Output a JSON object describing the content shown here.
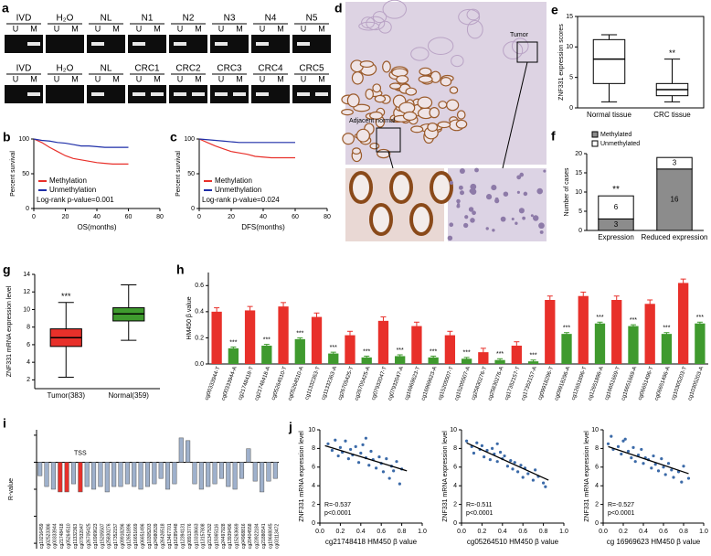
{
  "gel": {
    "panel": "a",
    "lanes": [
      "U",
      "M"
    ],
    "rows": [
      {
        "groups": [
          "IVD",
          "H₂O",
          "NL",
          "N1",
          "N2",
          "N3",
          "N4",
          "N5"
        ]
      },
      {
        "groups": [
          "IVD",
          "H₂O",
          "NL",
          "CRC1",
          "CRC2",
          "CRC3",
          "CRC4",
          "CRC5"
        ]
      }
    ]
  },
  "histology": {
    "panel": "d",
    "labels": [
      "Tumor",
      "Adjacent normal"
    ]
  },
  "chart_data": [
    {
      "type": "survival",
      "panel": "b",
      "y_label": "Percent survival",
      "x_label": "OS(months)",
      "x": [
        0,
        5,
        10,
        15,
        20,
        25,
        30,
        35,
        40,
        45,
        50,
        55,
        60
      ],
      "series": [
        {
          "name": "Methylation",
          "color": "#e8302a",
          "values": [
            100,
            95,
            88,
            82,
            76,
            72,
            70,
            68,
            66,
            65,
            64,
            64,
            64
          ]
        },
        {
          "name": "Unmethylation",
          "color": "#1f2fa8",
          "values": [
            100,
            98,
            97,
            95,
            94,
            92,
            90,
            90,
            89,
            88,
            88,
            88,
            88
          ]
        }
      ],
      "annotation": "Log-rank p-value=0.001",
      "xlim": [
        0,
        80
      ],
      "xticks": [
        0,
        20,
        40,
        60,
        80
      ],
      "ylim": [
        0,
        100
      ],
      "yticks": [
        0,
        50,
        100
      ]
    },
    {
      "type": "survival",
      "panel": "c",
      "y_label": "Percent survival",
      "x_label": "DFS(months)",
      "x": [
        0,
        5,
        10,
        15,
        20,
        25,
        30,
        35,
        40,
        45,
        50,
        55,
        60
      ],
      "series": [
        {
          "name": "Methylation",
          "color": "#e8302a",
          "values": [
            100,
            95,
            90,
            86,
            82,
            80,
            78,
            75,
            74,
            73,
            73,
            73,
            73
          ]
        },
        {
          "name": "Unmethylation",
          "color": "#1f2fa8",
          "values": [
            100,
            99,
            98,
            97,
            96,
            95,
            95,
            95,
            95,
            95,
            95,
            95,
            95
          ]
        }
      ],
      "annotation": "Log-rank p-value=0.024",
      "xlim": [
        0,
        80
      ],
      "xticks": [
        0,
        20,
        40,
        60,
        80
      ],
      "ylim": [
        0,
        100
      ],
      "yticks": [
        0,
        50,
        100
      ]
    },
    {
      "type": "box",
      "panel": "e",
      "y_label": "ZNF331 expression scores",
      "categories": [
        "Normal tissue",
        "CRC tissue"
      ],
      "boxes": [
        {
          "min": 1,
          "q1": 4,
          "median": 8,
          "q3": 11.2,
          "max": 12
        },
        {
          "min": 1,
          "q1": 2,
          "median": 3,
          "q3": 4,
          "max": 8
        }
      ],
      "colors": [
        "#ffffff",
        "#ffffff"
      ],
      "significance": [
        null,
        "**"
      ],
      "frame": true,
      "ylim": [
        0,
        15
      ],
      "yticks": [
        0,
        5,
        10,
        15
      ]
    },
    {
      "type": "stacked_bar",
      "panel": "f",
      "y_label": "Number of cases",
      "categories": [
        "Expression",
        "Reduced expression"
      ],
      "series": [
        {
          "name": "Methylated",
          "color": "#8c8c8c",
          "values": [
            3,
            16
          ]
        },
        {
          "name": "Unmethylated",
          "color": "#ffffff",
          "values": [
            6,
            3
          ]
        }
      ],
      "significance": [
        "**",
        null
      ],
      "ylim": [
        0,
        20
      ],
      "yticks": [
        0,
        5,
        10,
        15,
        20
      ]
    },
    {
      "type": "box",
      "panel": "g",
      "y_label": "ZNF331 mRNA expression level",
      "categories": [
        "Tumor(383)",
        "Normal(359)"
      ],
      "boxes": [
        {
          "min": 2.3,
          "q1": 5.8,
          "median": 6.8,
          "q3": 7.8,
          "max": 10.8
        },
        {
          "min": 6.5,
          "q1": 8.7,
          "median": 9.5,
          "q3": 10.2,
          "max": 12.8
        }
      ],
      "colors": [
        "#e8302a",
        "#3f9a2e"
      ],
      "significance": [
        "***",
        null
      ],
      "ylim": [
        1,
        14
      ],
      "yticks": [
        2,
        4,
        6,
        8,
        10,
        12,
        14
      ]
    },
    {
      "type": "bar",
      "panel": "h",
      "y_label": "HM450 β value",
      "categories": [
        "cg00333944-T",
        "cg00333944-A",
        "cg21748418-T",
        "cg21748418-A",
        "cg05264510-T",
        "cg05264510-A",
        "cg11332363-T",
        "cg11332363-A",
        "cg26705425-T",
        "cg26705425-A",
        "cg07932047-T",
        "cg07932047-A",
        "cg16969623-T",
        "cg16969623-A",
        "cg15205507-T",
        "cg15205507-A",
        "cg25830276-T",
        "cg25830276-A",
        "cg17352157-T",
        "cg17352157-A",
        "cg09918296-T",
        "cg09918296-A",
        "cg12651896-T",
        "cg12651896-A",
        "cg16651669-T",
        "cg16651669-A",
        "cg06651496-T",
        "cg06651496-A",
        "cg10305203-T",
        "cg10305203-A"
      ],
      "values": [
        0.4,
        0.12,
        0.41,
        0.14,
        0.44,
        0.19,
        0.36,
        0.08,
        0.22,
        0.05,
        0.33,
        0.06,
        0.29,
        0.05,
        0.22,
        0.04,
        0.09,
        0.03,
        0.14,
        0.02,
        0.49,
        0.23,
        0.52,
        0.31,
        0.49,
        0.29,
        0.46,
        0.23,
        0.62,
        0.31
      ],
      "errors": [
        0.03,
        0.01,
        0.03,
        0.01,
        0.03,
        0.01,
        0.03,
        0.01,
        0.03,
        0.01,
        0.03,
        0.01,
        0.03,
        0.01,
        0.03,
        0.01,
        0.03,
        0.01,
        0.03,
        0.01,
        0.03,
        0.01,
        0.03,
        0.01,
        0.03,
        0.01,
        0.03,
        0.01,
        0.03,
        0.01
      ],
      "significance": [
        null,
        "***",
        null,
        "***",
        null,
        "***",
        null,
        "***",
        null,
        "***",
        null,
        "***",
        null,
        "***",
        null,
        "***",
        null,
        "***",
        null,
        "***",
        null,
        "***",
        null,
        "***",
        null,
        "***",
        null,
        "***",
        null,
        "***"
      ],
      "color_cycle": [
        "#e8302a",
        "#3f9a2e"
      ],
      "ylim": [
        0,
        0.7
      ],
      "yticks": [
        {
          "value": 0,
          "label": "0.0"
        },
        {
          "value": 0.2,
          "label": "0.2"
        },
        {
          "value": 0.4,
          "label": "0.4"
        },
        {
          "value": 0.6,
          "label": "0.6"
        }
      ]
    },
    {
      "type": "bar",
      "panel": "i",
      "y_label": "R-value",
      "categories": [
        "cg10216459",
        "cg02523386",
        "cg00333944",
        "cg21748418",
        "cg05264510",
        "cg11332363",
        "cg07932047",
        "cg26705425",
        "cg16969623",
        "cg15205507",
        "cg25830276",
        "cg17352157",
        "cg09918296",
        "cg12651896",
        "cg16651669",
        "cg06651496",
        "cg10305203",
        "cg24980539",
        "cg26426518",
        "cg13467701",
        "cg16285448",
        "cg12394131",
        "cg08913776",
        "cg10318663",
        "cg13157808",
        "cg21347532",
        "cg19365116",
        "cg24497928",
        "cg13939496",
        "cg15263669",
        "cg04968816",
        "cg20404558",
        "cg23922184",
        "cg21886541",
        "cg19668045",
        "cg03113472"
      ],
      "values": [
        -0.25,
        -0.45,
        -0.5,
        -0.55,
        -0.55,
        -0.4,
        -0.55,
        -0.45,
        -0.5,
        -0.45,
        -0.55,
        -0.45,
        -0.45,
        -0.4,
        -0.45,
        -0.5,
        -0.45,
        -0.4,
        -0.3,
        -0.5,
        -0.4,
        0.45,
        0.4,
        -0.4,
        -0.5,
        -0.45,
        -0.4,
        -0.3,
        -0.45,
        -0.5,
        -0.3,
        0.25,
        -0.35,
        -0.55,
        -0.35,
        -0.3
      ],
      "color": "#9fb1cc",
      "highlight": [
        3,
        4,
        6
      ],
      "highlight_color": "#e8302a",
      "annotations": [
        {
          "text": "TSS",
          "at": 6
        }
      ],
      "ylim": [
        -1.6,
        0.6
      ],
      "yticks": [
        -1.5,
        -1,
        -0.5,
        0,
        0.5
      ]
    },
    {
      "type": "scatter",
      "panel": "j",
      "y_label": "ZNF331 mRNA expression level",
      "x_label": "cg21748418 HM450 β value",
      "stats": [
        "R=-0.537",
        "p<0.0001"
      ],
      "color": "#3b6aa8",
      "x": [
        0.08,
        0.12,
        0.15,
        0.18,
        0.2,
        0.22,
        0.25,
        0.28,
        0.3,
        0.32,
        0.35,
        0.38,
        0.4,
        0.42,
        0.45,
        0.48,
        0.5,
        0.52,
        0.55,
        0.58,
        0.6,
        0.62,
        0.65,
        0.68,
        0.7,
        0.72,
        0.75,
        0.78,
        0.8,
        0.45
      ],
      "y": [
        8.5,
        7.8,
        8.9,
        7.2,
        8.1,
        7.6,
        8.8,
        6.9,
        7.9,
        7.3,
        8.2,
        6.5,
        7.5,
        8.4,
        7.0,
        6.2,
        7.7,
        6.8,
        5.9,
        7.1,
        6.4,
        5.5,
        6.9,
        4.8,
        6.1,
        5.6,
        6.6,
        4.2,
        5.8,
        9.1
      ],
      "fit": {
        "x": [
          0.05,
          0.85
        ],
        "y": [
          8.3,
          5.6
        ]
      },
      "xlim": [
        0,
        1
      ],
      "xticks": [
        {
          "value": 0,
          "label": "0.0"
        },
        {
          "value": 0.2,
          "label": "0.2"
        },
        {
          "value": 0.4,
          "label": "0.4"
        },
        {
          "value": 0.6,
          "label": "0.6"
        },
        {
          "value": 0.8,
          "label": "0.8"
        },
        {
          "value": 1,
          "label": "1.0"
        }
      ],
      "ylim": [
        0,
        10
      ],
      "yticks": [
        0,
        2,
        4,
        6,
        8,
        10
      ]
    },
    {
      "type": "scatter",
      "y_label": "ZNF331 mRNA expression level",
      "x_label": "cg05264510 HM450 β value",
      "stats": [
        "R=-0.511",
        "p<0.0001"
      ],
      "color": "#3b6aa8",
      "x": [
        0.05,
        0.1,
        0.12,
        0.15,
        0.18,
        0.2,
        0.22,
        0.25,
        0.28,
        0.3,
        0.32,
        0.35,
        0.38,
        0.4,
        0.42,
        0.45,
        0.48,
        0.5,
        0.52,
        0.55,
        0.58,
        0.6,
        0.62,
        0.65,
        0.7,
        0.72,
        0.75,
        0.8,
        0.82,
        0.35
      ],
      "y": [
        8.8,
        8.2,
        7.5,
        8.6,
        7.9,
        8.3,
        7.1,
        7.8,
        6.8,
        8.0,
        7.4,
        6.6,
        7.6,
        6.9,
        7.2,
        6.1,
        6.7,
        5.8,
        6.5,
        5.5,
        6.2,
        4.9,
        5.9,
        5.3,
        4.6,
        5.7,
        5.0,
        4.3,
        3.9,
        8.5
      ],
      "fit": {
        "x": [
          0.05,
          0.85
        ],
        "y": [
          8.6,
          4.6
        ]
      },
      "xlim": [
        0,
        1
      ],
      "xticks": [
        {
          "value": 0,
          "label": "0.0"
        },
        {
          "value": 0.2,
          "label": "0.2"
        },
        {
          "value": 0.4,
          "label": "0.4"
        },
        {
          "value": 0.6,
          "label": "0.6"
        },
        {
          "value": 0.8,
          "label": "0.8"
        },
        {
          "value": 1,
          "label": "1.0"
        }
      ],
      "ylim": [
        0,
        10
      ],
      "yticks": [
        0,
        2,
        4,
        6,
        8,
        10
      ]
    },
    {
      "type": "scatter",
      "y_label": "ZNF331 mRNA expression level",
      "x_label": "cg 16969623 HM450 β value",
      "stats": [
        "R=-0.527",
        "p<0.0001"
      ],
      "color": "#3b6aa8",
      "x": [
        0.05,
        0.08,
        0.1,
        0.15,
        0.18,
        0.2,
        0.25,
        0.28,
        0.3,
        0.32,
        0.35,
        0.38,
        0.4,
        0.42,
        0.45,
        0.48,
        0.5,
        0.52,
        0.55,
        0.58,
        0.6,
        0.62,
        0.65,
        0.68,
        0.7,
        0.75,
        0.78,
        0.8,
        0.85,
        0.22
      ],
      "y": [
        8.5,
        9.3,
        7.9,
        8.2,
        7.4,
        8.8,
        7.7,
        7.0,
        8.1,
        6.6,
        7.3,
        7.9,
        6.4,
        7.0,
        6.8,
        5.9,
        7.2,
        6.3,
        5.6,
        6.9,
        6.0,
        5.2,
        6.4,
        5.7,
        4.9,
        5.5,
        4.4,
        6.1,
        4.8,
        9.0
      ],
      "fit": {
        "x": [
          0.05,
          0.85
        ],
        "y": [
          8.2,
          5.3
        ]
      },
      "xlim": [
        0,
        1
      ],
      "xticks": [
        {
          "value": 0,
          "label": "0.0"
        },
        {
          "value": 0.2,
          "label": "0.2"
        },
        {
          "value": 0.4,
          "label": "0.4"
        },
        {
          "value": 0.6,
          "label": "0.6"
        },
        {
          "value": 0.8,
          "label": "0.8"
        },
        {
          "value": 1,
          "label": "1.0"
        }
      ],
      "ylim": [
        0,
        10
      ],
      "yticks": [
        0,
        2,
        4,
        6,
        8,
        10
      ]
    }
  ]
}
